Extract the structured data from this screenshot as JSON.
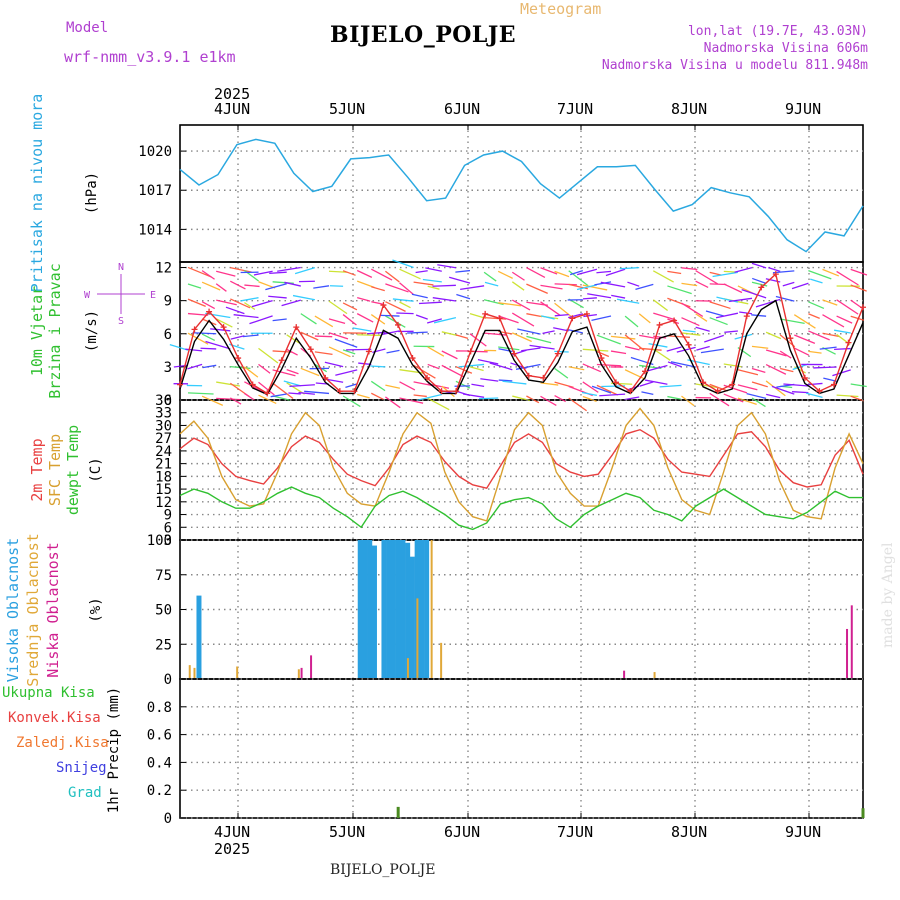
{
  "header": {
    "model_label": "Model",
    "model_name": "wrf-nmm_v3.9.1 e1km",
    "title": "BIJELO_POLJE",
    "meteogram_label": "Meteogram",
    "lonlat": "lon,lat (19.7E, 43.03N)",
    "altitude": "Nadmorska Visina 606m",
    "model_altitude": "Nadmorska Visina u modelu 811.948m"
  },
  "footer": {
    "station": "BIJELO_POLJE",
    "credit": "made by Angel"
  },
  "time_axis": {
    "year": "2025",
    "day_labels": [
      "4JUN",
      "5JUN",
      "6JUN",
      "7JUN",
      "8JUN",
      "9JUN"
    ],
    "start": "2025-06-03T14:00",
    "end": "2025-06-09T14:00"
  },
  "chart_data": [
    {
      "type": "line",
      "panel": "pressure",
      "ylabel": [
        "Pritisak na nivou mora",
        "(hPa)"
      ],
      "yticks": [
        "1020",
        "1017",
        "1014"
      ],
      "ylim": [
        1011.5,
        1022
      ],
      "color": "#2aa8e0",
      "series": [
        {
          "x": [
            "2025-06-03T14:00",
            "2025-06-03T18:00",
            "2025-06-03T22:00",
            "2025-06-04T02:00",
            "2025-06-04T06:00",
            "2025-06-04T10:00",
            "2025-06-04T14:00",
            "2025-06-04T18:00",
            "2025-06-04T22:00",
            "2025-06-05T02:00",
            "2025-06-05T06:00",
            "2025-06-05T10:00",
            "2025-06-05T14:00",
            "2025-06-05T18:00",
            "2025-06-05T22:00",
            "2025-06-06T02:00",
            "2025-06-06T06:00",
            "2025-06-06T10:00",
            "2025-06-06T14:00",
            "2025-06-06T18:00",
            "2025-06-06T22:00",
            "2025-06-07T02:00",
            "2025-06-07T06:00",
            "2025-06-07T10:00",
            "2025-06-07T14:00",
            "2025-06-07T18:00",
            "2025-06-07T22:00",
            "2025-06-08T02:00",
            "2025-06-08T06:00",
            "2025-06-08T10:00",
            "2025-06-08T14:00",
            "2025-06-08T18:00",
            "2025-06-08T22:00",
            "2025-06-09T02:00",
            "2025-06-09T06:00",
            "2025-06-09T10:00",
            "2025-06-09T14:00"
          ],
          "values": [
            1018.6,
            1017.4,
            1018.2,
            1020.5,
            1020.9,
            1020.6,
            1018.3,
            1016.9,
            1017.3,
            1019.4,
            1019.5,
            1019.7,
            1018.0,
            1016.2,
            1016.4,
            1018.9,
            1019.7,
            1020.0,
            1019.2,
            1017.5,
            1016.4,
            1017.6,
            1018.8,
            1018.8,
            1018.9,
            1017.1,
            1015.4,
            1015.9,
            1017.2,
            1016.8,
            1016.5,
            1015.0,
            1013.2,
            1012.3,
            1013.8,
            1013.5,
            1015.8
          ]
        }
      ]
    },
    {
      "type": "line",
      "panel": "wind",
      "ylabel": [
        "10m Vjetar",
        "Brzina i Pravac",
        "(m/s)"
      ],
      "compass": [
        "N",
        "S",
        "W",
        "E"
      ],
      "yticks": [
        "12",
        "9",
        "6",
        "3",
        "0"
      ],
      "ylim": [
        0,
        12.5
      ],
      "series": [
        {
          "name": "wind speed",
          "color": "#000000",
          "values": [
            1.0,
            5.3,
            7.2,
            5.5,
            3.2,
            1.1,
            0.5,
            2.8,
            5.6,
            3.8,
            1.6,
            0.6,
            0.6,
            3.0,
            6.3,
            5.6,
            3.2,
            1.7,
            0.6,
            0.6,
            3.4,
            6.3,
            6.3,
            3.6,
            1.8,
            1.6,
            3.4,
            6.2,
            6.6,
            3.2,
            1.2,
            0.6,
            2.0,
            5.6,
            6.0,
            4.0,
            1.2,
            0.6,
            1.0,
            6.0,
            8.2,
            9.0,
            4.5,
            1.5,
            0.6,
            1.0,
            4.0,
            7.0
          ]
        },
        {
          "name": "wind gust",
          "color": "#e83030",
          "values": [
            1.4,
            6.4,
            8.0,
            6.6,
            3.8,
            1.4,
            0.6,
            3.6,
            6.6,
            4.6,
            2.0,
            0.8,
            0.8,
            4.4,
            8.6,
            6.8,
            3.8,
            2.0,
            0.8,
            0.8,
            4.4,
            7.8,
            7.4,
            4.2,
            2.2,
            2.0,
            4.2,
            7.4,
            7.8,
            3.8,
            1.6,
            0.8,
            2.6,
            6.8,
            7.2,
            5.0,
            1.6,
            0.8,
            1.4,
            7.6,
            10.2,
            11.4,
            5.6,
            2.0,
            0.8,
            1.4,
            5.2,
            8.4
          ]
        }
      ]
    },
    {
      "type": "line",
      "panel": "temperature",
      "ylabel": [
        "2m Temp",
        "SFC Temp",
        "dewpt Temp",
        "(C)"
      ],
      "yticks": [
        "36",
        "33",
        "30",
        "27",
        "24",
        "21",
        "18",
        "15",
        "12",
        "9",
        "6",
        "3"
      ],
      "ylim": [
        3,
        36
      ],
      "series": [
        {
          "name": "2m Temp",
          "color": "#e84040",
          "values": [
            24.5,
            27.0,
            25.5,
            21.0,
            18.0,
            17.0,
            16.2,
            20.0,
            25.0,
            27.5,
            26.0,
            22.0,
            18.5,
            17.0,
            15.8,
            20.0,
            25.5,
            27.5,
            26.0,
            21.5,
            18.0,
            16.0,
            15.2,
            20.5,
            26.0,
            28.0,
            26.0,
            21.0,
            19.0,
            18.0,
            18.5,
            23.0,
            28.0,
            29.0,
            27.0,
            22.0,
            19.0,
            18.5,
            18.0,
            23.0,
            28.0,
            28.5,
            25.0,
            19.5,
            16.5,
            15.5,
            16.0,
            23.0,
            26.5,
            18.5
          ]
        },
        {
          "name": "SFC Temp",
          "color": "#d8a030",
          "values": [
            28.0,
            31.0,
            27.0,
            18.0,
            12.5,
            11.0,
            11.5,
            19.0,
            28.0,
            33.0,
            30.0,
            20.0,
            14.0,
            11.5,
            11.0,
            19.0,
            28.0,
            33.0,
            30.5,
            19.0,
            12.0,
            8.5,
            7.5,
            18.0,
            29.0,
            33.0,
            30.0,
            19.0,
            14.0,
            11.0,
            11.0,
            20.0,
            30.0,
            34.0,
            30.0,
            20.0,
            12.5,
            10.0,
            9.0,
            19.0,
            30.0,
            33.0,
            28.0,
            17.0,
            10.0,
            8.5,
            8.0,
            20.0,
            28.0,
            21.0
          ]
        },
        {
          "name": "dewpt Temp",
          "color": "#30c030",
          "values": [
            13.5,
            15.0,
            14.0,
            12.0,
            10.5,
            10.5,
            12.0,
            14.0,
            15.5,
            14.0,
            13.0,
            10.5,
            8.5,
            6.0,
            11.0,
            13.5,
            14.5,
            13.0,
            11.0,
            9.0,
            6.5,
            5.5,
            7.0,
            11.5,
            12.5,
            13.0,
            11.5,
            8.0,
            6.0,
            9.0,
            11.0,
            12.5,
            14.0,
            13.0,
            10.0,
            9.0,
            7.5,
            11.0,
            13.0,
            15.0,
            13.0,
            11.0,
            9.0,
            8.5,
            8.0,
            9.5,
            12.0,
            14.5,
            13.0,
            13.0
          ]
        }
      ]
    },
    {
      "type": "bar",
      "panel": "clouds",
      "ylabel": [
        "Visoka Oblacnost",
        "Srednja Oblacnost",
        "Niska Oblacnost",
        "(%)"
      ],
      "yticks": [
        "100",
        "75",
        "50",
        "25",
        "0"
      ],
      "ylim": [
        0,
        100
      ],
      "series": [
        {
          "name": "Visoka Oblacnost",
          "color": "#2aa0e0",
          "points": [
            [
              "2025-06-03T18:00",
              60
            ],
            [
              "2025-06-05T04:00",
              100
            ],
            [
              "2025-06-05T05:00",
              100
            ],
            [
              "2025-06-05T06:00",
              100
            ],
            [
              "2025-06-05T07:00",
              96
            ],
            [
              "2025-06-05T09:00",
              100
            ],
            [
              "2025-06-05T10:00",
              100
            ],
            [
              "2025-06-05T11:00",
              100
            ],
            [
              "2025-06-05T12:00",
              100
            ],
            [
              "2025-06-05T13:00",
              100
            ],
            [
              "2025-06-05T14:00",
              98
            ],
            [
              "2025-06-05T15:00",
              88
            ],
            [
              "2025-06-05T16:00",
              100
            ],
            [
              "2025-06-05T17:00",
              100
            ],
            [
              "2025-06-05T18:00",
              100
            ]
          ]
        },
        {
          "name": "Srednja Oblacnost",
          "color": "#e0a838",
          "points": [
            [
              "2025-06-03T15:00",
              10
            ],
            [
              "2025-06-03T16:00",
              8
            ],
            [
              "2025-06-04T01:00",
              9
            ],
            [
              "2025-06-04T14:00",
              7
            ],
            [
              "2025-06-05T13:00",
              15
            ],
            [
              "2025-06-05T15:00",
              58
            ],
            [
              "2025-06-05T18:00",
              100
            ],
            [
              "2025-06-05T20:00",
              26
            ],
            [
              "2025-06-07T17:00",
              5
            ]
          ]
        },
        {
          "name": "Niska Oblacnost",
          "color": "#d02090",
          "points": [
            [
              "2025-06-04T15:00",
              8
            ],
            [
              "2025-06-04T17:00",
              17
            ],
            [
              "2025-06-07T11:00",
              6
            ],
            [
              "2025-06-09T10:00",
              36
            ],
            [
              "2025-06-09T11:00",
              53
            ]
          ]
        }
      ]
    },
    {
      "type": "bar",
      "panel": "precipitation",
      "ylabel": [
        "1hr Precip (mm)"
      ],
      "legend": [
        "Ukupna Kisa",
        "Konvek.Kisa",
        "Zaledj.Kisa",
        "Snijeg",
        "Grad"
      ],
      "legend_colors": [
        "#30c030",
        "#e84040",
        "#f07830",
        "#4040e0",
        "#20c0c0"
      ],
      "yticks": [
        "0.8",
        "0.6",
        "0.4",
        "0.2",
        "0"
      ],
      "ylim": [
        0,
        1.0
      ],
      "series": [
        {
          "name": "Ukupna Kisa",
          "color": "#4a8a20",
          "points": [
            [
              "2025-06-05T12:00",
              0.08
            ],
            [
              "2025-06-09T14:00",
              0.07
            ]
          ]
        }
      ]
    }
  ]
}
